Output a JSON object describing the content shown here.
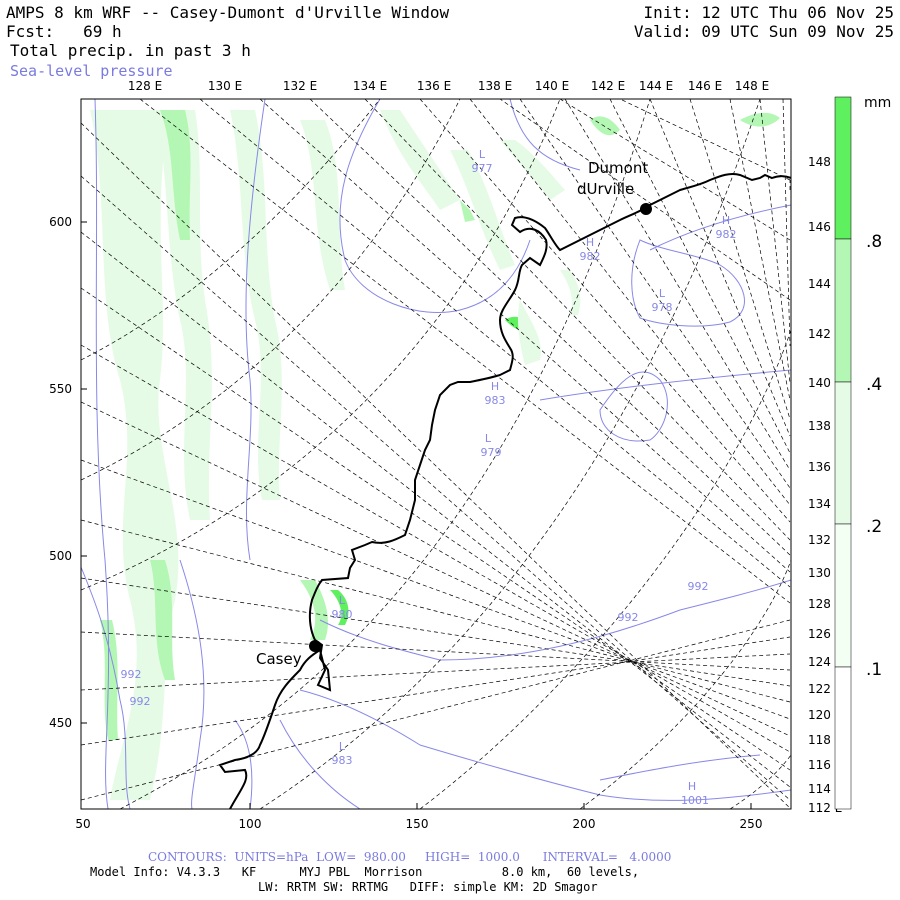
{
  "header": {
    "title": "AMPS 8 km WRF -- Casey-Dumont d'Urville Window",
    "fcst": "Fcst:   69 h",
    "field": "Total precip. in past 3 h",
    "overlay": "Sea-level pressure",
    "init": "Init: 12 UTC Thu 06 Nov 25",
    "valid": "Valid: 09 UTC Sun 09 Nov 25"
  },
  "top_lon_labels": [
    "128 E",
    "130 E",
    "132 E",
    "134 E",
    "136 E",
    "138 E",
    "140 E",
    "142 E",
    "144 E",
    "146 E",
    "148 E"
  ],
  "right_lon_labels": [
    "148 E",
    "146 E",
    "144 E",
    "142 E",
    "140 E",
    "138 E",
    "136 E",
    "134 E",
    "132 E",
    "130 E",
    "128 E",
    "126 E",
    "124 E",
    "122 E",
    "120 E",
    "118 E",
    "116 E",
    "114 E",
    "112 E"
  ],
  "left_grid_labels": [
    "600",
    "550",
    "500",
    "450"
  ],
  "bottom_grid_labels": [
    "50",
    "100",
    "150",
    "200",
    "250"
  ],
  "stations": [
    {
      "name": "Casey",
      "label_lines": [
        "Casey"
      ]
    },
    {
      "name": "Dumont d'Urville",
      "label_lines": [
        "Dumont",
        "dUrville"
      ]
    }
  ],
  "pressure_labels": [
    {
      "letter": "L",
      "value": "977"
    },
    {
      "letter": "H",
      "value": "982"
    },
    {
      "letter": "H",
      "value": "982"
    },
    {
      "letter": "L",
      "value": "978"
    },
    {
      "letter": "H",
      "value": "983"
    },
    {
      "letter": "L",
      "value": "979"
    },
    {
      "letter": "L",
      "value": "980"
    },
    {
      "letter": "L",
      "value": "983"
    },
    {
      "letter": "H",
      "value": "1001"
    },
    {
      "letter": "",
      "value": "992"
    },
    {
      "letter": "",
      "value": "992"
    },
    {
      "letter": "",
      "value": "992"
    },
    {
      "letter": "",
      "value": "992"
    }
  ],
  "colorbar": {
    "unit": "mm",
    "labels": [
      ".8",
      ".4",
      ".2",
      ".1"
    ],
    "colors": [
      "#5ef05e",
      "#b4f7b4",
      "#e6fbe6",
      "#ffffff"
    ]
  },
  "footer": {
    "contours": "CONTOURS:  UNITS=hPa  LOW=  980.00     HIGH=  1000.0      INTERVAL=   4.0000",
    "model_info": "Model Info: V4.3.3   KF      MYJ PBL  Morrison           8.0 km,  60 levels,",
    "physics": "LW: RRTM SW: RRTMG   DIFF: simple KM: 2D Smagor"
  }
}
